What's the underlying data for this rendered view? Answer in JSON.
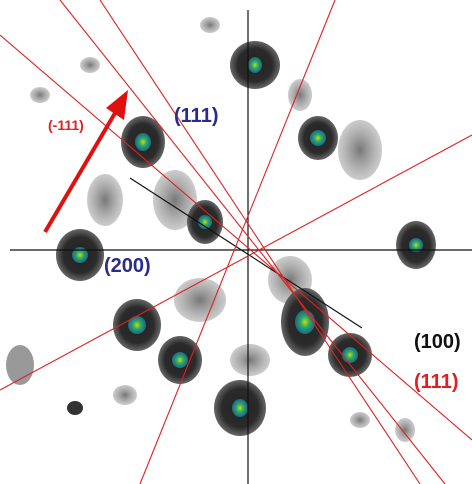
{
  "annotations": [
    "(-111)",
    "(111)",
    "(200)",
    "(100)",
    "(111)"
  ]
}
